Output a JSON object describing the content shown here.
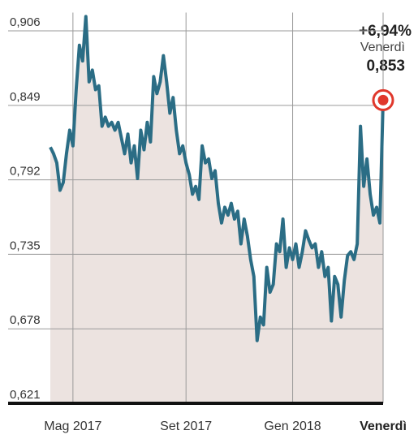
{
  "chart_data": {
    "type": "line",
    "categories": [
      null,
      null,
      null,
      null,
      null,
      null,
      null,
      "Mag 2017",
      null,
      null,
      null,
      null,
      null,
      null,
      null,
      null,
      null,
      null,
      null,
      null,
      null,
      null,
      null,
      null,
      null,
      null,
      null,
      null,
      null,
      null,
      null,
      null,
      null,
      null,
      null,
      null,
      null,
      null,
      null,
      null,
      null,
      null,
      "Set 2017",
      null,
      null,
      null,
      null,
      null,
      null,
      null,
      null,
      null,
      null,
      null,
      null,
      null,
      null,
      null,
      null,
      null,
      null,
      null,
      null,
      null,
      null,
      null,
      null,
      null,
      null,
      null,
      null,
      null,
      null,
      null,
      null,
      "Gen 2018",
      null,
      null,
      null,
      null,
      null,
      null,
      null,
      null,
      null,
      null,
      null,
      null,
      null,
      null,
      null,
      null,
      null,
      null,
      null,
      null,
      null,
      null,
      null,
      null,
      null,
      null,
      null,
      "Venerdì"
    ],
    "values": [
      0.817,
      0.812,
      0.805,
      0.784,
      0.79,
      0.812,
      0.83,
      0.818,
      0.861,
      0.895,
      0.883,
      0.917,
      0.867,
      0.876,
      0.861,
      0.864,
      0.833,
      0.84,
      0.833,
      0.836,
      0.83,
      0.836,
      0.824,
      0.812,
      0.827,
      0.805,
      0.818,
      0.793,
      0.83,
      0.815,
      0.836,
      0.821,
      0.871,
      0.858,
      0.867,
      0.887,
      0.867,
      0.843,
      0.855,
      0.83,
      0.812,
      0.818,
      0.805,
      0.796,
      0.781,
      0.787,
      0.777,
      0.818,
      0.805,
      0.808,
      0.793,
      0.799,
      0.774,
      0.759,
      0.771,
      0.765,
      0.774,
      0.762,
      0.768,
      0.743,
      0.762,
      0.749,
      0.731,
      0.718,
      0.669,
      0.687,
      0.681,
      0.725,
      0.706,
      0.712,
      0.743,
      0.737,
      0.762,
      0.725,
      0.74,
      0.731,
      0.743,
      0.725,
      0.737,
      0.753,
      0.746,
      0.74,
      0.743,
      0.725,
      0.737,
      0.718,
      0.725,
      0.684,
      0.718,
      0.712,
      0.687,
      0.715,
      0.734,
      0.737,
      0.731,
      0.743,
      0.833,
      0.787,
      0.808,
      0.781,
      0.765,
      0.771,
      0.759,
      0.853
    ],
    "color": "#2b6d85",
    "fill": "#ece3e0",
    "marker_color": "#e0382c",
    "ylim": [
      0.621,
      0.92
    ],
    "yticks": [
      {
        "value": 0.621,
        "label": "0,621"
      },
      {
        "value": 0.678,
        "label": "0,678"
      },
      {
        "value": 0.735,
        "label": "0,735"
      },
      {
        "value": 0.792,
        "label": "0,792"
      },
      {
        "value": 0.849,
        "label": "0,849"
      },
      {
        "value": 0.906,
        "label": "0,906"
      }
    ],
    "grid": true,
    "annotation": {
      "change": "+6,94%",
      "day": "Venerdì",
      "value_label": "0,853"
    }
  }
}
